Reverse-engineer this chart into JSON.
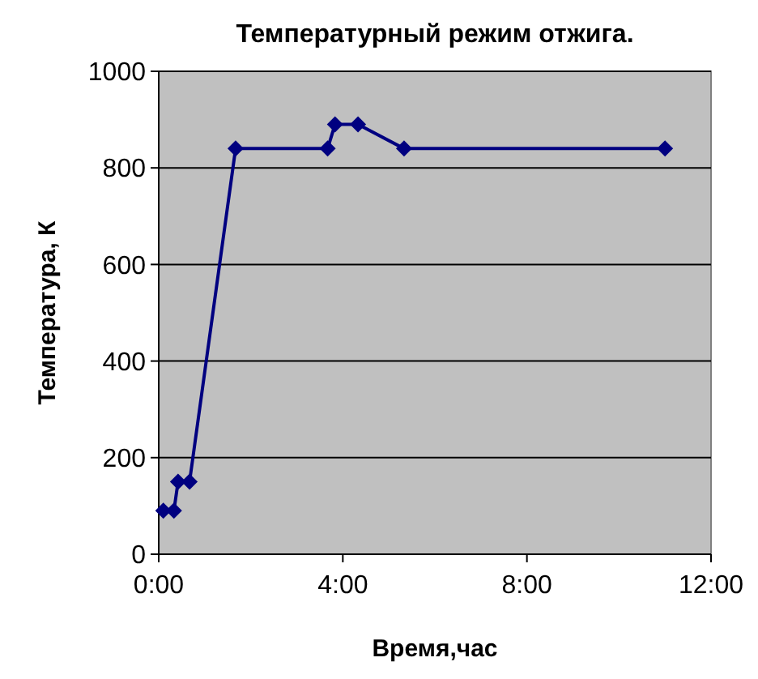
{
  "chart_data": {
    "type": "line",
    "title": "Температурный режим отжига.",
    "xlabel": "Время,час",
    "ylabel": "Температура, К",
    "x": [
      0.1,
      0.33,
      0.42,
      0.67,
      1.67,
      3.67,
      3.83,
      4.33,
      5.33,
      11
    ],
    "series": [
      {
        "color": "#000080",
        "values": [
          90,
          90,
          150,
          150,
          840,
          840,
          890,
          890,
          840,
          840
        ]
      }
    ],
    "xlim": [
      0,
      12
    ],
    "xticks": [
      {
        "value": 0,
        "label": "0:00"
      },
      {
        "value": 4,
        "label": "4:00"
      },
      {
        "value": 8,
        "label": "8:00"
      },
      {
        "value": 12,
        "label": "12:00"
      }
    ],
    "ylim": [
      0,
      1000
    ],
    "yticks": [
      0,
      200,
      400,
      600,
      800,
      1000
    ],
    "grid": "y",
    "marker": "diamond",
    "line_style": "solid"
  }
}
